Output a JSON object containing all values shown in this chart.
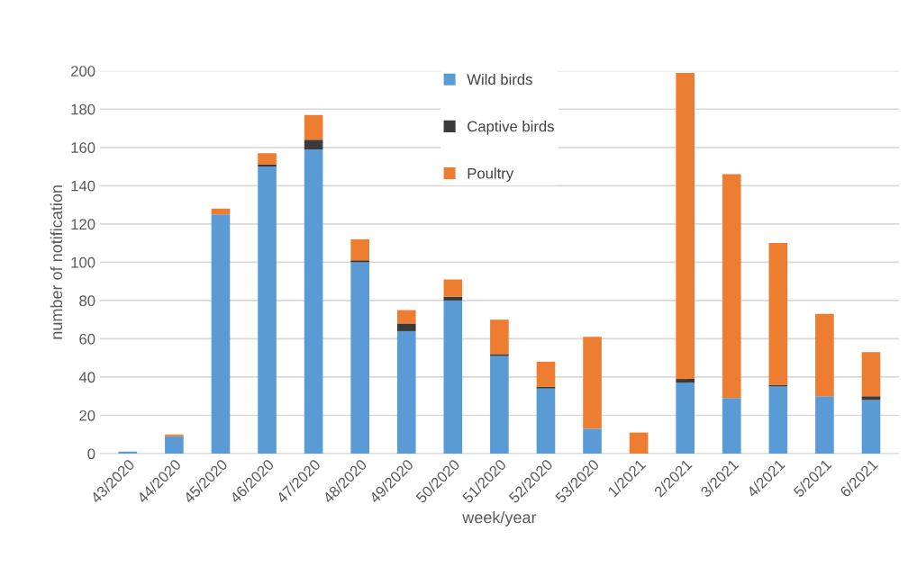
{
  "chart_data": {
    "type": "bar",
    "stacked": true,
    "xlabel": "week/year",
    "ylabel": "number of notification",
    "categories": [
      "43/2020",
      "44/2020",
      "45/2020",
      "46/2020",
      "47/2020",
      "48/2020",
      "49/2020",
      "50/2020",
      "51/2020",
      "52/2020",
      "53/2020",
      "1/2021",
      "2/2021",
      "3/2021",
      "4/2021",
      "5/2021",
      "6/2021"
    ],
    "series": [
      {
        "name": "Wild birds",
        "color": "#5b9bd5",
        "values": [
          1,
          9,
          125,
          150,
          159,
          100,
          64,
          80,
          51,
          34,
          13,
          0,
          37,
          29,
          35,
          30,
          28
        ]
      },
      {
        "name": "Captive birds",
        "color": "#3a3a3a",
        "values": [
          0,
          0,
          0,
          1,
          5,
          1,
          4,
          2,
          1,
          1,
          0,
          0,
          2,
          0,
          1,
          0,
          2
        ]
      },
      {
        "name": "Poultry",
        "color": "#ed7d31",
        "values": [
          0,
          1,
          3,
          6,
          13,
          11,
          7,
          9,
          18,
          13,
          48,
          11,
          160,
          117,
          74,
          43,
          23
        ]
      }
    ],
    "ylim": [
      0,
      200
    ],
    "yticks": [
      0,
      20,
      40,
      60,
      80,
      100,
      120,
      140,
      160,
      180,
      200
    ],
    "grid": "y",
    "legend": "top"
  }
}
